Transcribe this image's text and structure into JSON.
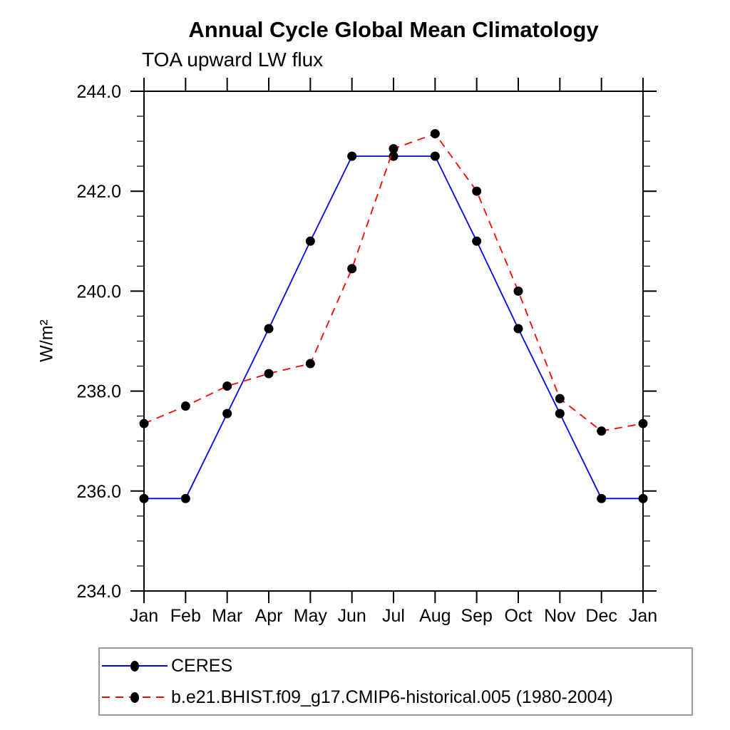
{
  "chart_data": {
    "type": "line",
    "title": "Annual Cycle Global Mean Climatology",
    "subtitle": "TOA upward LW flux",
    "ylabel": "W/m²",
    "xlabel": "",
    "x_categories": [
      "Jan",
      "Feb",
      "Mar",
      "Apr",
      "May",
      "Jun",
      "Jul",
      "Aug",
      "Sep",
      "Oct",
      "Nov",
      "Dec",
      "Jan"
    ],
    "ylim": [
      234.0,
      244.0
    ],
    "ytick_labels": [
      "234.0",
      "236.0",
      "238.0",
      "240.0",
      "242.0",
      "244.0"
    ],
    "ytick_major_interval": 2.0,
    "ytick_minor_interval": 0.5,
    "grid": false,
    "legend_position": "bottom-left-box",
    "series": [
      {
        "name": "CERES",
        "color": "#0000ee",
        "line_style": "solid",
        "marker": "black-dot",
        "values": [
          235.85,
          235.85,
          237.55,
          239.25,
          241.0,
          242.7,
          242.7,
          242.7,
          241.0,
          239.25,
          237.55,
          235.85,
          235.85
        ]
      },
      {
        "name": "b.e21.BHIST.f09_g17.CMIP6-historical.005 (1980-2004)",
        "color": "#ff0000",
        "line_style": "dashed",
        "marker": "black-dot",
        "values": [
          237.35,
          237.7,
          238.1,
          238.35,
          238.55,
          240.45,
          242.85,
          243.15,
          242.0,
          240.0,
          237.85,
          237.2,
          237.35
        ]
      }
    ],
    "colors": {
      "axis": "#000000",
      "marker": "#000000",
      "legend_border": "#9a9a9a",
      "background": "#ffffff"
    }
  }
}
